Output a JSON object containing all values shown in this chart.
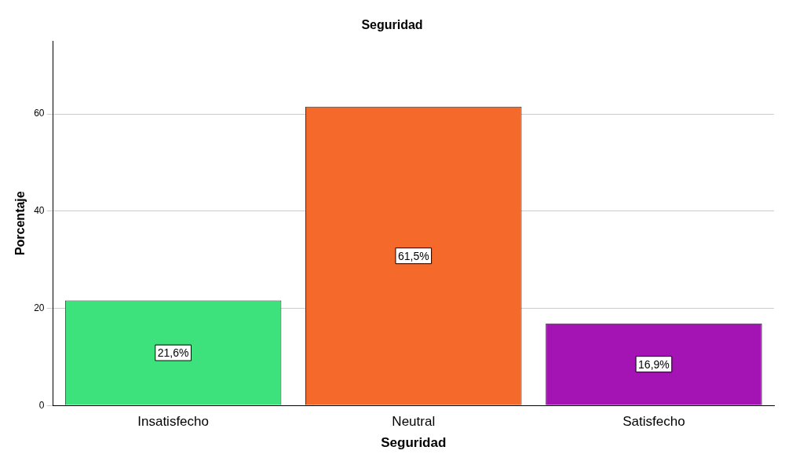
{
  "chart_data": {
    "type": "bar",
    "title": "Seguridad",
    "xlabel": "Seguridad",
    "ylabel": "Porcentaje",
    "categories": [
      "Insatisfecho",
      "Neutral",
      "Satisfecho"
    ],
    "values": [
      21.6,
      61.5,
      16.9
    ],
    "colors": [
      "#3ee27c",
      "#f56a2a",
      "#a414b4"
    ],
    "value_labels": [
      "21,6%",
      "61,5%",
      "16,9%"
    ],
    "ylim": [
      0,
      75
    ],
    "yticks": [
      0,
      20,
      40,
      60
    ],
    "grid": "y",
    "legend": false
  }
}
